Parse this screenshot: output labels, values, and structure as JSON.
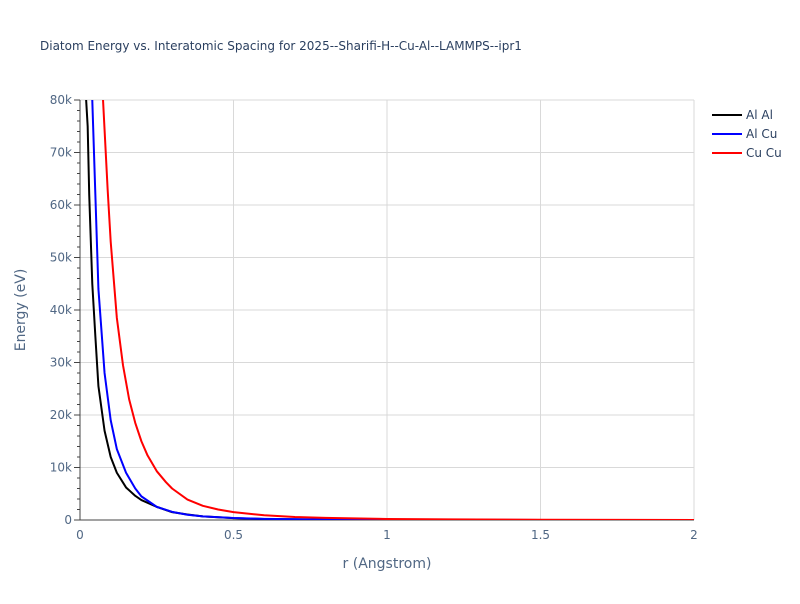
{
  "chart_data": {
    "type": "line",
    "title": "Diatom Energy vs. Interatomic Spacing for 2025--Sharifi-H--Cu-Al--LAMMPS--ipr1",
    "xlabel": "r (Angstrom)",
    "ylabel": "Energy (eV)",
    "xlim": [
      0,
      2
    ],
    "ylim": [
      0,
      80000
    ],
    "xticks": [
      0,
      0.5,
      1,
      1.5,
      2
    ],
    "xtick_labels": [
      "0",
      "0.5",
      "1",
      "1.5",
      "2"
    ],
    "yticks": [
      0,
      10000,
      20000,
      30000,
      40000,
      50000,
      60000,
      70000,
      80000
    ],
    "ytick_labels": [
      "0",
      "10k",
      "20k",
      "30k",
      "40k",
      "50k",
      "60k",
      "70k",
      "80k"
    ],
    "grid": true,
    "legend_position": "top-right",
    "series": [
      {
        "name": "Al Al",
        "color": "#000000",
        "x": [
          0.02,
          0.025,
          0.03,
          0.04,
          0.05,
          0.06,
          0.08,
          0.1,
          0.12,
          0.15,
          0.18,
          0.2,
          0.25,
          0.3,
          0.35,
          0.4,
          0.5,
          0.6,
          0.8,
          1.0,
          1.5,
          2.0
        ],
        "y": [
          80000,
          75000,
          62000,
          45000,
          35000,
          25500,
          17000,
          12000,
          9000,
          6200,
          4600,
          3800,
          2500,
          1500,
          1050,
          700,
          350,
          200,
          80,
          30,
          5,
          0
        ]
      },
      {
        "name": "Al Cu",
        "color": "#0000ff",
        "x": [
          0.04,
          0.05,
          0.06,
          0.08,
          0.1,
          0.12,
          0.15,
          0.18,
          0.2,
          0.25,
          0.3,
          0.35,
          0.4,
          0.5,
          0.6,
          0.8,
          1.0,
          1.5,
          2.0
        ],
        "y": [
          80000,
          62000,
          44000,
          28000,
          19000,
          13500,
          9000,
          6000,
          4500,
          2500,
          1550,
          1000,
          700,
          380,
          220,
          90,
          40,
          8,
          0
        ]
      },
      {
        "name": "Cu Cu",
        "color": "#ff0000",
        "x": [
          0.075,
          0.09,
          0.1,
          0.12,
          0.14,
          0.16,
          0.18,
          0.2,
          0.22,
          0.25,
          0.28,
          0.3,
          0.35,
          0.4,
          0.45,
          0.5,
          0.6,
          0.7,
          0.8,
          1.0,
          1.2,
          1.5,
          2.0
        ],
        "y": [
          80000,
          63000,
          53000,
          38500,
          29500,
          23000,
          18500,
          15000,
          12300,
          9300,
          7200,
          6000,
          3900,
          2700,
          2000,
          1500,
          900,
          580,
          400,
          200,
          110,
          50,
          10
        ]
      }
    ]
  }
}
